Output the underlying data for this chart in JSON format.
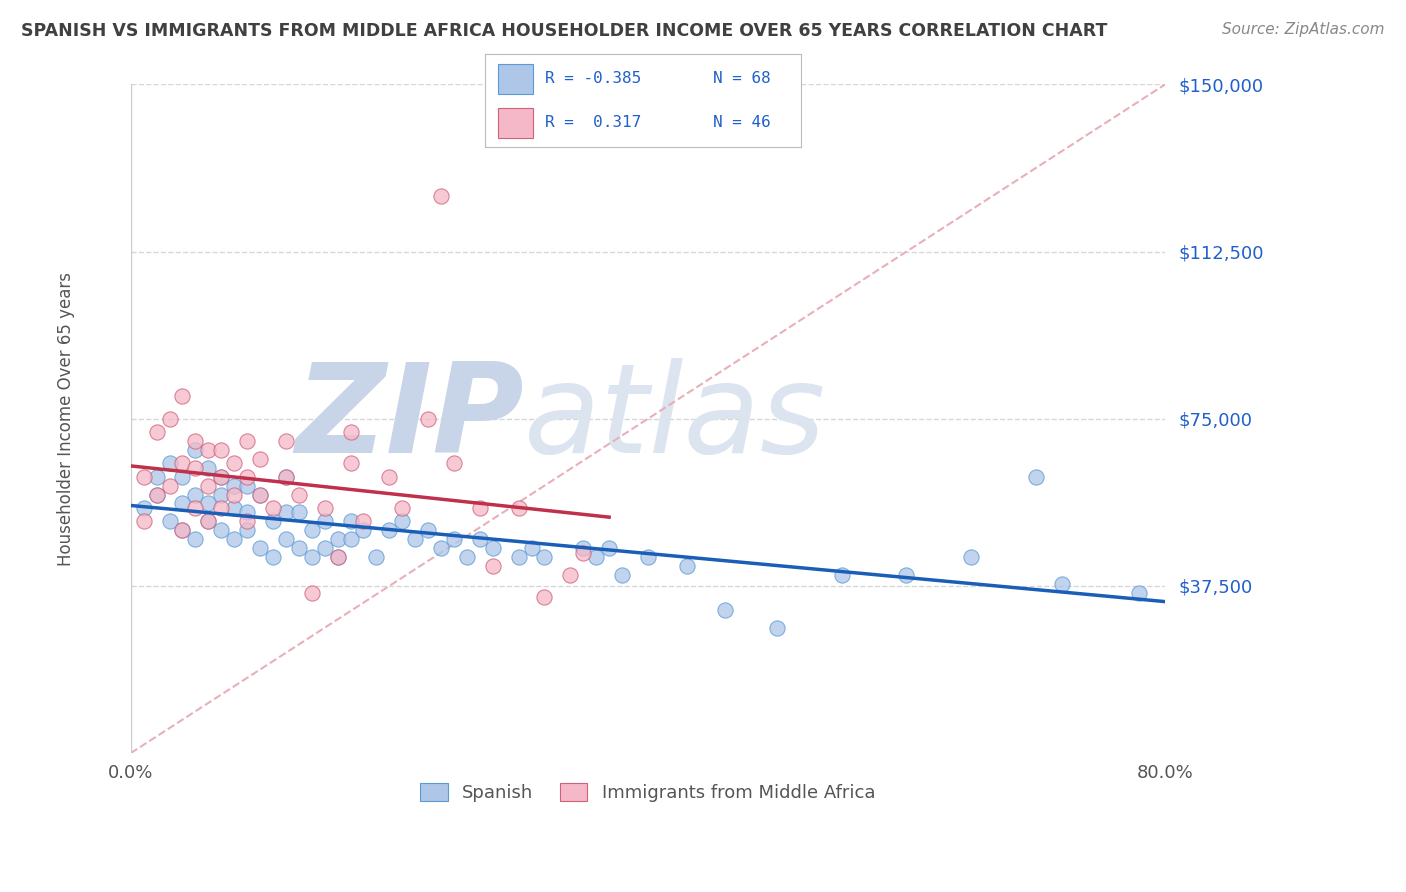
{
  "title": "SPANISH VS IMMIGRANTS FROM MIDDLE AFRICA HOUSEHOLDER INCOME OVER 65 YEARS CORRELATION CHART",
  "source_text": "Source: ZipAtlas.com",
  "ylabel": "Householder Income Over 65 years",
  "ytick_labels": [
    "$37,500",
    "$75,000",
    "$112,500",
    "$150,000"
  ],
  "ytick_values": [
    37500,
    75000,
    112500,
    150000
  ],
  "ymin": 0,
  "ymax": 150000,
  "xmin": 0.0,
  "xmax": 0.8,
  "r_spanish": -0.385,
  "n_spanish": 68,
  "r_immigrants": 0.317,
  "n_immigrants": 46,
  "color_spanish_fill": "#aec6e8",
  "color_spanish_edge": "#5b9bd5",
  "color_immigrants_fill": "#f4b8c8",
  "color_immigrants_edge": "#d0607a",
  "color_trendline_spanish": "#1a5eb8",
  "color_trendline_immigrants": "#c0304a",
  "color_refline": "#e8b0b8",
  "watermark_zip": "ZIP",
  "watermark_atlas": "atlas",
  "watermark_color_zip": "#c8d4e8",
  "watermark_color_atlas": "#c8d4e8",
  "legend_text_color": "#2060cc",
  "background_color": "#ffffff",
  "grid_color": "#cccccc",
  "title_color": "#404040",
  "source_color": "#888888",
  "ytick_color": "#2060cc",
  "xtick_color": "#555555",
  "spanish_scatter_x": [
    0.01,
    0.02,
    0.02,
    0.03,
    0.03,
    0.04,
    0.04,
    0.04,
    0.05,
    0.05,
    0.05,
    0.06,
    0.06,
    0.06,
    0.07,
    0.07,
    0.07,
    0.08,
    0.08,
    0.08,
    0.09,
    0.09,
    0.09,
    0.1,
    0.1,
    0.11,
    0.11,
    0.12,
    0.12,
    0.12,
    0.13,
    0.13,
    0.14,
    0.14,
    0.15,
    0.15,
    0.16,
    0.16,
    0.17,
    0.17,
    0.18,
    0.19,
    0.2,
    0.21,
    0.22,
    0.23,
    0.24,
    0.25,
    0.26,
    0.27,
    0.28,
    0.3,
    0.31,
    0.32,
    0.35,
    0.36,
    0.37,
    0.38,
    0.4,
    0.43,
    0.46,
    0.5,
    0.55,
    0.6,
    0.65,
    0.7,
    0.72,
    0.78
  ],
  "spanish_scatter_y": [
    55000,
    62000,
    58000,
    52000,
    65000,
    50000,
    56000,
    62000,
    48000,
    58000,
    68000,
    52000,
    56000,
    64000,
    50000,
    58000,
    62000,
    48000,
    55000,
    60000,
    50000,
    54000,
    60000,
    46000,
    58000,
    44000,
    52000,
    48000,
    54000,
    62000,
    46000,
    54000,
    50000,
    44000,
    52000,
    46000,
    48000,
    44000,
    52000,
    48000,
    50000,
    44000,
    50000,
    52000,
    48000,
    50000,
    46000,
    48000,
    44000,
    48000,
    46000,
    44000,
    46000,
    44000,
    46000,
    44000,
    46000,
    40000,
    44000,
    42000,
    32000,
    28000,
    40000,
    40000,
    44000,
    62000,
    38000,
    36000
  ],
  "immigrants_scatter_x": [
    0.01,
    0.01,
    0.02,
    0.02,
    0.03,
    0.03,
    0.04,
    0.04,
    0.04,
    0.05,
    0.05,
    0.05,
    0.06,
    0.06,
    0.06,
    0.07,
    0.07,
    0.07,
    0.08,
    0.08,
    0.09,
    0.09,
    0.09,
    0.1,
    0.1,
    0.11,
    0.12,
    0.12,
    0.13,
    0.14,
    0.15,
    0.16,
    0.17,
    0.17,
    0.18,
    0.2,
    0.21,
    0.23,
    0.24,
    0.25,
    0.27,
    0.28,
    0.3,
    0.32,
    0.34,
    0.35
  ],
  "immigrants_scatter_y": [
    52000,
    62000,
    58000,
    72000,
    60000,
    75000,
    50000,
    65000,
    80000,
    55000,
    64000,
    70000,
    52000,
    60000,
    68000,
    55000,
    62000,
    68000,
    58000,
    65000,
    52000,
    62000,
    70000,
    58000,
    66000,
    55000,
    62000,
    70000,
    58000,
    36000,
    55000,
    44000,
    65000,
    72000,
    52000,
    62000,
    55000,
    75000,
    125000,
    65000,
    55000,
    42000,
    55000,
    35000,
    40000,
    45000
  ]
}
